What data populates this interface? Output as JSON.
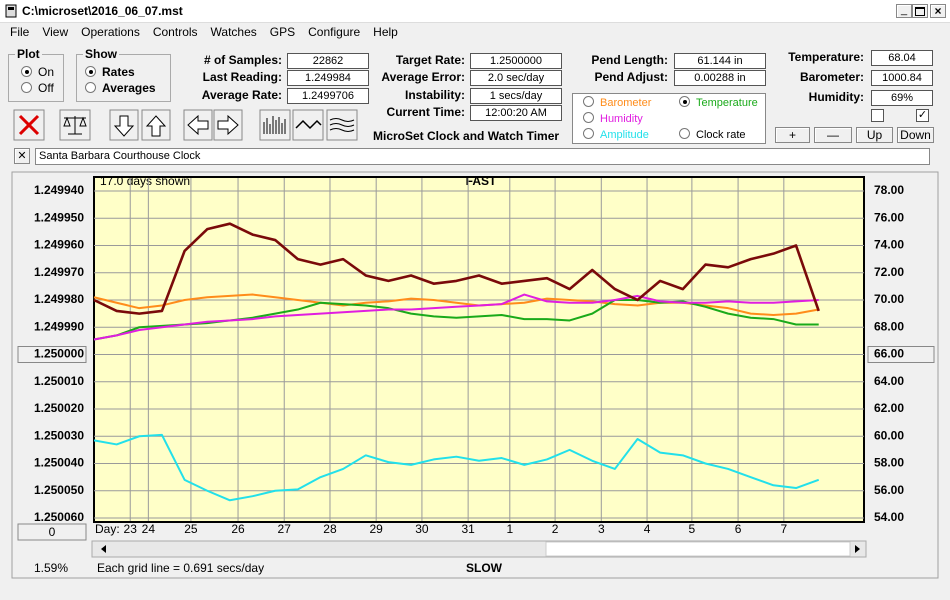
{
  "window": {
    "title": "C:\\microset\\2016_06_07.mst"
  },
  "menu": [
    "File",
    "View",
    "Operations",
    "Controls",
    "Watches",
    "GPS",
    "Configure",
    "Help"
  ],
  "plot_group": {
    "title": "Plot",
    "options": [
      "On",
      "Off"
    ]
  },
  "show_group": {
    "title": "Show",
    "options": [
      "Rates",
      "Averages"
    ]
  },
  "fields": [
    {
      "label": "# of Samples:",
      "value": "22862"
    },
    {
      "label": "Last Reading:",
      "value": "1.249984"
    },
    {
      "label": "Average Rate:",
      "value": "1.2499706"
    },
    {
      "label": "Target Rate:",
      "value": "1.2500000"
    },
    {
      "label": "Average Error:",
      "value": "2.0 sec/day"
    },
    {
      "label": "Instability:",
      "value": "1 secs/day"
    },
    {
      "label": "Current Time:",
      "value": "12:00:20 AM"
    },
    {
      "label": "Pend Length:",
      "value": "61.144 in"
    },
    {
      "label": "Pend Adjust:",
      "value": "0.00288 in"
    },
    {
      "label": "Temperature:",
      "value": "68.04"
    },
    {
      "label": "Barometer:",
      "value": "1000.84"
    },
    {
      "label": "Humidity:",
      "value": "69%"
    }
  ],
  "app_label": "MicroSet Clock and Watch Timer",
  "buttons": [
    "+",
    "—",
    "Up",
    "Down"
  ],
  "clock_name": "Santa Barbara Courthouse Clock",
  "zero_button": "0",
  "chart_data": {
    "type": "line",
    "top_label": "FAST",
    "bottom_label": "SLOW",
    "days_shown": "17.0 days shown",
    "grid_note": "Each grid line = 0.691 secs/day",
    "percent": "1.59%",
    "x_label": "Day:",
    "xlim": [
      0,
      17
    ],
    "xticks": [
      {
        "value": 0.8,
        "label": "23"
      },
      {
        "value": 1.2,
        "label": "24"
      },
      {
        "value": 2.14,
        "label": "25"
      },
      {
        "value": 3.18,
        "label": "26"
      },
      {
        "value": 4.2,
        "label": "27"
      },
      {
        "value": 5.21,
        "label": "28"
      },
      {
        "value": 6.23,
        "label": "29"
      },
      {
        "value": 7.24,
        "label": "30"
      },
      {
        "value": 8.26,
        "label": "31"
      },
      {
        "value": 9.18,
        "label": "1"
      },
      {
        "value": 10.18,
        "label": "2"
      },
      {
        "value": 11.2,
        "label": "3"
      },
      {
        "value": 12.21,
        "label": "4"
      },
      {
        "value": 13.2,
        "label": "5"
      },
      {
        "value": 14.22,
        "label": "6"
      },
      {
        "value": 15.23,
        "label": "7"
      }
    ],
    "ylim": [
      1.24994,
      1.25006
    ],
    "y_inverted": true,
    "yticks": [
      {
        "value": 1.24994,
        "label": "1.249940"
      },
      {
        "value": 1.24995,
        "label": "1.249950"
      },
      {
        "value": 1.24996,
        "label": "1.249960"
      },
      {
        "value": 1.24997,
        "label": "1.249970"
      },
      {
        "value": 1.24998,
        "label": "1.249980"
      },
      {
        "value": 1.24999,
        "label": "1.249990"
      },
      {
        "value": 1.25,
        "label": "1.250000"
      },
      {
        "value": 1.25001,
        "label": "1.250010"
      },
      {
        "value": 1.25002,
        "label": "1.250020"
      },
      {
        "value": 1.25003,
        "label": "1.250030"
      },
      {
        "value": 1.25004,
        "label": "1.250040"
      },
      {
        "value": 1.25005,
        "label": "1.250050"
      },
      {
        "value": 1.25006,
        "label": "1.250060"
      }
    ],
    "y2lim": [
      54,
      78
    ],
    "y2ticks": [
      {
        "value": 78,
        "label": "78.00"
      },
      {
        "value": 76,
        "label": "76.00"
      },
      {
        "value": 74,
        "label": "74.00"
      },
      {
        "value": 72,
        "label": "72.00"
      },
      {
        "value": 70,
        "label": "70.00"
      },
      {
        "value": 68,
        "label": "68.00"
      },
      {
        "value": 66,
        "label": "66.00"
      },
      {
        "value": 64,
        "label": "64.00"
      },
      {
        "value": 62,
        "label": "62.00"
      },
      {
        "value": 60,
        "label": "60.00"
      },
      {
        "value": 58,
        "label": "58.00"
      },
      {
        "value": 56,
        "label": "56.00"
      },
      {
        "value": 54,
        "label": "54.00"
      }
    ],
    "grid": true,
    "x": [
      0,
      0.5,
      1,
      1.5,
      2,
      2.5,
      3,
      3.5,
      4,
      4.5,
      5,
      5.5,
      6,
      6.5,
      7,
      7.5,
      8,
      8.5,
      9,
      9.5,
      10,
      10.5,
      11,
      11.5,
      12,
      12.5,
      13,
      13.5,
      14,
      14.5,
      15,
      15.5,
      16
    ],
    "series": [
      {
        "name": "Barometer",
        "color": "#ff8c1a",
        "axis": "y2",
        "checked": false,
        "values": [
          70.2,
          69.8,
          69.4,
          69.6,
          70.0,
          70.2,
          70.3,
          70.4,
          70.2,
          70.0,
          69.8,
          69.6,
          69.8,
          69.9,
          70.1,
          70.0,
          69.8,
          69.6,
          69.7,
          69.8,
          70.1,
          70.0,
          69.9,
          69.7,
          69.6,
          69.8,
          69.8,
          69.6,
          69.4,
          69.0,
          68.9,
          69.0,
          69.3
        ]
      },
      {
        "name": "Temperature",
        "color": "#1aaa1a",
        "axis": "y2",
        "checked": true,
        "values": [
          67.1,
          67.4,
          68.0,
          68.1,
          68.2,
          68.3,
          68.5,
          68.7,
          69.0,
          69.3,
          69.8,
          69.7,
          69.6,
          69.4,
          69.0,
          68.8,
          68.7,
          68.8,
          68.9,
          68.6,
          68.6,
          68.5,
          69.0,
          70.0,
          70.0,
          69.8,
          69.9,
          69.5,
          69.0,
          68.7,
          68.6,
          68.2,
          68.2
        ]
      },
      {
        "name": "Humidity",
        "color": "#e01ee0",
        "axis": "y2",
        "checked": false,
        "values": [
          67.1,
          67.4,
          67.8,
          68.0,
          68.2,
          68.4,
          68.5,
          68.6,
          68.8,
          68.9,
          69.0,
          69.1,
          69.2,
          69.3,
          69.3,
          69.4,
          69.5,
          69.6,
          69.7,
          70.4,
          69.9,
          69.8,
          69.8,
          70.0,
          70.3,
          69.9,
          69.8,
          69.8,
          69.9,
          69.8,
          69.8,
          69.9,
          70.0
        ]
      },
      {
        "name": "Amplitude",
        "color": "#22e0ea",
        "axis": "y2",
        "checked": false,
        "values": [
          59.7,
          59.4,
          60.0,
          60.1,
          56.8,
          56.0,
          55.3,
          55.6,
          56.0,
          56.1,
          57.0,
          57.6,
          58.6,
          58.1,
          57.9,
          58.3,
          58.5,
          58.2,
          58.4,
          57.9,
          58.3,
          59.0,
          58.2,
          57.6,
          59.8,
          58.8,
          58.6,
          58.0,
          57.6,
          57.0,
          56.4,
          56.2,
          56.8
        ]
      },
      {
        "name": "Clock rate",
        "color": "#7a0a0a",
        "axis": "y",
        "checked": false,
        "values": [
          1.24998,
          1.249984,
          1.249985,
          1.249984,
          1.249962,
          1.249954,
          1.249952,
          1.249956,
          1.249958,
          1.249965,
          1.249967,
          1.249965,
          1.249971,
          1.249973,
          1.249971,
          1.249974,
          1.249973,
          1.249971,
          1.249974,
          1.249973,
          1.249972,
          1.249976,
          1.249969,
          1.249976,
          1.24998,
          1.249973,
          1.249976,
          1.249967,
          1.249968,
          1.249965,
          1.249963,
          1.24996,
          1.249984
        ]
      }
    ]
  }
}
